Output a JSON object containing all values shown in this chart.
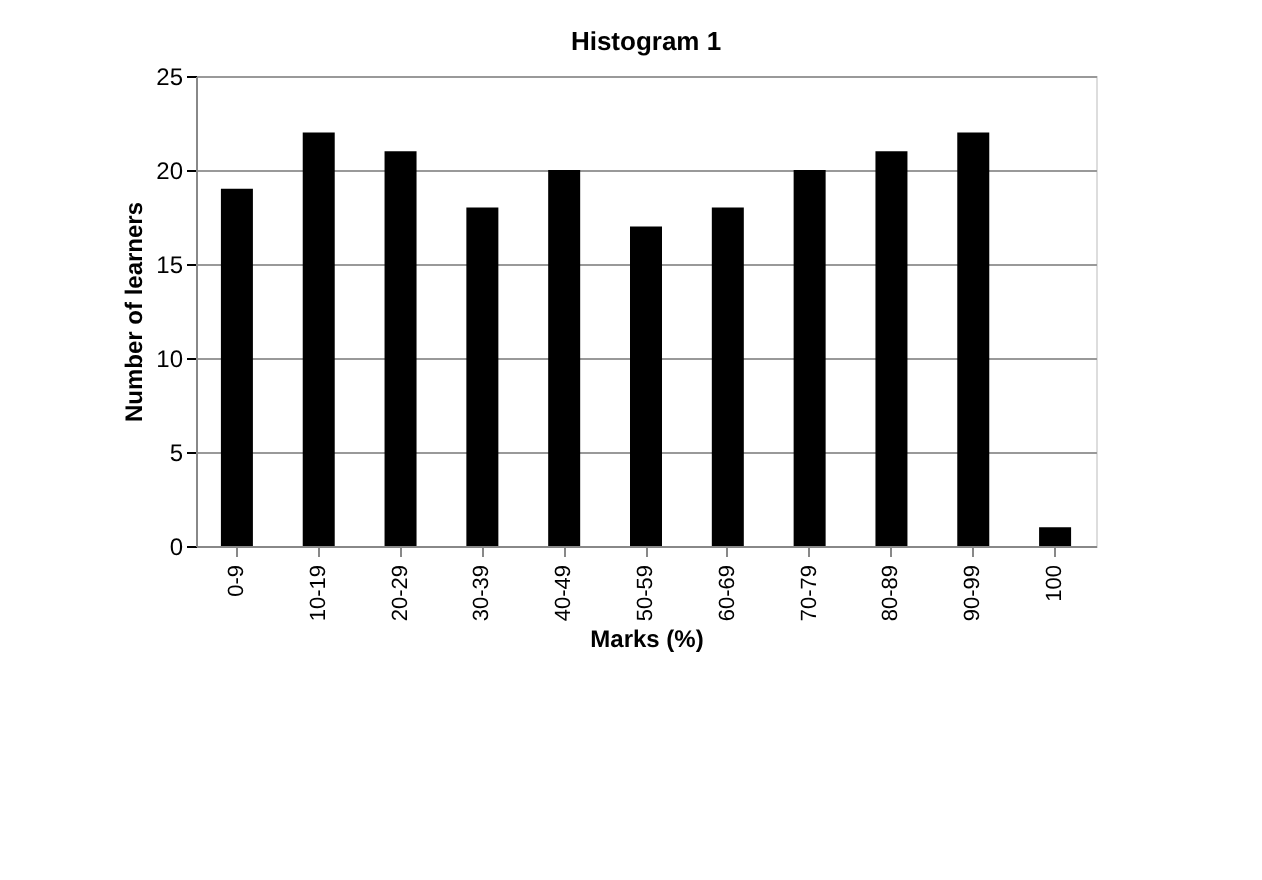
{
  "chart_data": {
    "type": "bar",
    "title": "Histogram 1",
    "xlabel": "Marks (%)",
    "ylabel": "Number of learners",
    "categories": [
      "0-9",
      "10-19",
      "20-29",
      "30-39",
      "40-49",
      "50-59",
      "60-69",
      "70-79",
      "80-89",
      "90-99",
      "100"
    ],
    "values": [
      19,
      22,
      21,
      18,
      20,
      17,
      18,
      20,
      21,
      22,
      1
    ],
    "color": "#000000",
    "ylim": [
      0,
      25
    ],
    "yticks": [
      0,
      5,
      10,
      15,
      20,
      25
    ],
    "grid": "y"
  }
}
